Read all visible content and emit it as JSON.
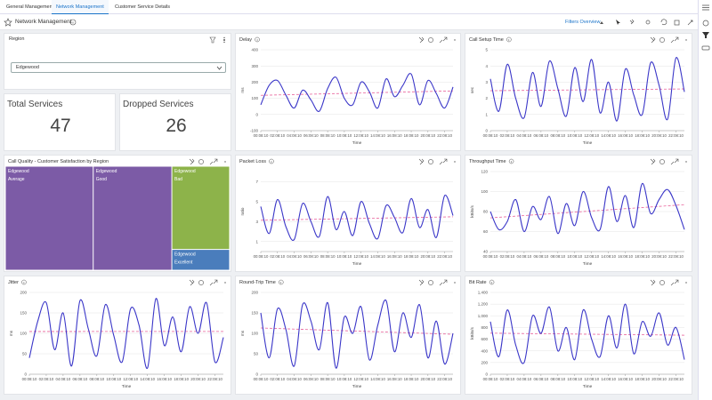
{
  "tabs": [
    "General Management",
    "Network Management",
    "Customer Service Details"
  ],
  "active_tab": 1,
  "page_title": "Network Management",
  "filters_label": "Filters Overview",
  "region": {
    "title": "Region",
    "selected": "Edgewood"
  },
  "kpis": [
    {
      "title": "Total Services",
      "value": 47
    },
    {
      "title": "Dropped Services",
      "value": 26
    }
  ],
  "chart_data": [
    {
      "type": "line",
      "title": "Delay",
      "x_label": "Time",
      "y_label": "ms",
      "color": "#3a36c8",
      "trend_color": "#e8609a",
      "grid": true,
      "categories": [
        "00:08:10",
        null,
        "02:08:10",
        null,
        "04:08:10",
        null,
        "06:08:10",
        null,
        "08:08:10",
        null,
        "10:08:10",
        null,
        "12:08:10",
        null,
        "14:08:10",
        null,
        "16:08:10",
        null,
        "18:08:10",
        null,
        "20:08:10",
        null,
        "22:08:10",
        null
      ],
      "values": [
        60,
        180,
        210,
        120,
        40,
        150,
        90,
        20,
        160,
        230,
        100,
        60,
        200,
        140,
        40,
        220,
        110,
        180,
        250,
        60,
        210,
        130,
        40,
        170
      ],
      "ylim": [
        -100,
        400
      ],
      "yticks": [
        -100,
        0,
        100,
        200,
        300,
        400
      ]
    },
    {
      "type": "line",
      "title": "Call Setup Time",
      "x_label": "Time",
      "y_label": "sec",
      "color": "#3a36c8",
      "trend_color": "#e8609a",
      "grid": true,
      "categories": [
        "00:08:10",
        null,
        "02:08:10",
        null,
        "04:08:10",
        null,
        "06:08:10",
        null,
        "08:08:10",
        null,
        "10:08:10",
        null,
        "12:08:10",
        null,
        "14:08:10",
        null,
        "16:08:10",
        null,
        "18:08:10",
        null,
        "20:08:10",
        null,
        "22:08:10",
        null
      ],
      "values": [
        3.2,
        1.2,
        4.1,
        2.0,
        0.8,
        3.6,
        1.5,
        4.3,
        2.6,
        0.9,
        3.9,
        1.8,
        4.4,
        1.1,
        3.0,
        0.6,
        3.8,
        2.2,
        1.0,
        4.2,
        2.8,
        0.7,
        4.5,
        2.4
      ],
      "ylim": [
        0,
        5
      ],
      "yticks": [
        0,
        1,
        2,
        3,
        4,
        5
      ]
    },
    {
      "type": "treemap",
      "title": "Call Quality - Customer Satisfaction by Region",
      "items": [
        {
          "region": "Edgewood",
          "label": "Average",
          "value": 38,
          "color": "#7c5ba6"
        },
        {
          "region": "Edgewood",
          "label": "Good",
          "value": 34,
          "color": "#7c5ba6"
        },
        {
          "region": "Edgewood",
          "label": "Bad",
          "value": 20,
          "color": "#8db34a"
        },
        {
          "region": "Edgewood",
          "label": "Excellent",
          "value": 5,
          "color": "#4a7dbc"
        }
      ]
    },
    {
      "type": "line",
      "title": "Packet Loss",
      "x_label": "Time",
      "y_label": "ratio",
      "color": "#3a36c8",
      "trend_color": "#e8609a",
      "grid": true,
      "categories": [
        "00:08:10",
        null,
        "02:08:10",
        null,
        "04:08:10",
        null,
        "06:08:10",
        null,
        "08:08:10",
        null,
        "10:08:10",
        null,
        "12:08:10",
        null,
        "14:08:10",
        null,
        "16:08:10",
        null,
        "18:08:10",
        null,
        "20:08:10",
        null,
        "22:08:10",
        null
      ],
      "values": [
        4.5,
        1.8,
        5.2,
        2.5,
        1.2,
        4.8,
        3.0,
        1.5,
        5.5,
        2.2,
        4.0,
        1.6,
        5.0,
        2.8,
        1.3,
        4.6,
        3.4,
        1.9,
        5.3,
        2.4,
        4.2,
        1.4,
        5.6,
        3.6
      ],
      "ylim": [
        0,
        8
      ],
      "yticks": [
        1,
        3,
        5,
        7
      ]
    },
    {
      "type": "line",
      "title": "Throughput Time",
      "x_label": "Time",
      "y_label": "kBits/s",
      "color": "#3a36c8",
      "trend_color": "#e8609a",
      "grid": true,
      "categories": [
        "00:08:10",
        null,
        "02:08:10",
        null,
        "04:08:10",
        null,
        "06:08:10",
        null,
        "08:08:10",
        null,
        "10:08:10",
        null,
        "12:08:10",
        null,
        "14:08:10",
        null,
        "16:08:10",
        null,
        "18:08:10",
        null,
        "20:08:10",
        null,
        "22:08:10",
        null
      ],
      "values": [
        80,
        62,
        70,
        92,
        60,
        85,
        72,
        95,
        58,
        88,
        66,
        100,
        74,
        62,
        105,
        70,
        96,
        64,
        108,
        78,
        92,
        102,
        86,
        62
      ],
      "ylim": [
        40,
        120
      ],
      "yticks": [
        40,
        60,
        80,
        100,
        120
      ]
    },
    {
      "type": "line",
      "title": "Jitter",
      "x_label": "Time",
      "y_label": "ms",
      "color": "#3a36c8",
      "trend_color": "#e8609a",
      "grid": true,
      "categories": [
        "00:08:10",
        null,
        "02:08:10",
        null,
        "04:08:10",
        null,
        "06:08:10",
        null,
        "08:08:10",
        null,
        "10:08:10",
        null,
        "12:08:10",
        null,
        "14:08:10",
        null,
        "16:08:10",
        null,
        "18:08:10",
        null,
        "20:08:10",
        null,
        "22:08:10",
        null
      ],
      "values": [
        40,
        130,
        175,
        60,
        150,
        20,
        180,
        110,
        45,
        170,
        95,
        30,
        160,
        120,
        15,
        185,
        70,
        140,
        55,
        165,
        100,
        175,
        30,
        90
      ],
      "ylim": [
        0,
        200
      ],
      "yticks": [
        0,
        50,
        100,
        150,
        200
      ]
    },
    {
      "type": "line",
      "title": "Round-Trip Time",
      "x_label": "Time",
      "y_label": "ms",
      "color": "#3a36c8",
      "trend_color": "#e8609a",
      "grid": true,
      "categories": [
        "00:08:10",
        null,
        "02:08:10",
        null,
        "04:08:10",
        null,
        "06:08:10",
        null,
        "08:08:10",
        null,
        "10:08:10",
        null,
        "12:08:10",
        null,
        "14:08:10",
        null,
        "16:08:10",
        null,
        "18:08:10",
        null,
        "20:08:10",
        null,
        "22:08:10",
        null
      ],
      "values": [
        150,
        40,
        160,
        110,
        20,
        170,
        130,
        60,
        175,
        15,
        140,
        100,
        165,
        35,
        120,
        180,
        55,
        150,
        90,
        170,
        40,
        130,
        25,
        100
      ],
      "ylim": [
        0,
        200
      ],
      "yticks": [
        0,
        50,
        100,
        150,
        200
      ]
    },
    {
      "type": "line",
      "title": "Bit Rate",
      "x_label": "Time",
      "y_label": "kBits/s",
      "color": "#3a36c8",
      "trend_color": "#e8609a",
      "grid": true,
      "categories": [
        "00:08:10",
        null,
        "02:08:10",
        null,
        "04:08:10",
        null,
        "06:08:10",
        null,
        "08:08:10",
        null,
        "10:08:10",
        null,
        "12:08:10",
        null,
        "14:08:10",
        null,
        "16:08:10",
        null,
        "18:08:10",
        null,
        "20:08:10",
        null,
        "22:08:10",
        null
      ],
      "values": [
        900,
        300,
        1100,
        500,
        200,
        1000,
        700,
        1150,
        400,
        800,
        250,
        1100,
        600,
        300,
        1000,
        450,
        1200,
        350,
        900,
        650,
        1050,
        500,
        800,
        250
      ],
      "ylim": [
        0,
        1400
      ],
      "yticks": [
        0,
        200,
        400,
        600,
        800,
        {
          "value": 1000,
          "label": "1,000"
        },
        {
          "value": 1200,
          "label": "1,200"
        },
        {
          "value": 1400,
          "label": "1,400"
        }
      ]
    }
  ]
}
